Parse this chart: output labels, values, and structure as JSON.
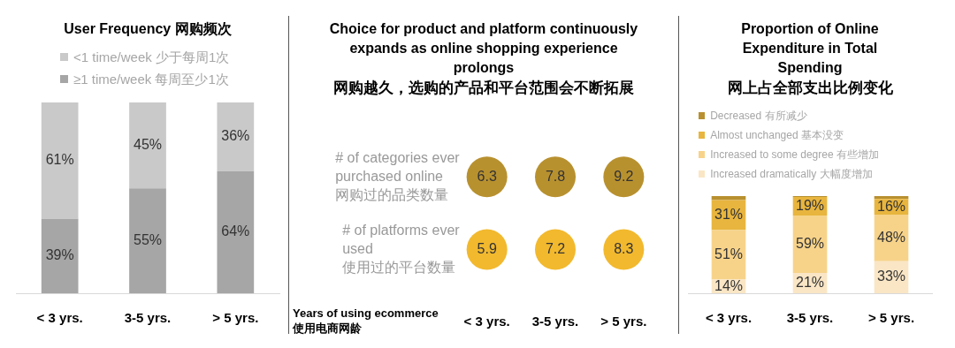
{
  "chart_data": [
    {
      "type": "bar",
      "title": "User Frequency 网购频次",
      "categories": [
        "< 3 yrs.",
        "3-5 yrs.",
        "> 5 yrs."
      ],
      "stacked": true,
      "legend": "top",
      "series": [
        {
          "name": "≥1 time/week 每周至少1次",
          "color": "#a6a6a6",
          "values": [
            39,
            55,
            64
          ],
          "value_labels": [
            "39%",
            "55%",
            "64%"
          ]
        },
        {
          "name": "<1 time/week 少于每周1次",
          "color": "#c9c9c9",
          "values": [
            61,
            45,
            36
          ],
          "value_labels": [
            "61%",
            "45%",
            "36%"
          ]
        }
      ]
    },
    {
      "type": "other",
      "title": "Choice for product and platform continuously expands as online shopping experience prolongs",
      "subtitle": "网购越久，选购的产品和平台范围会不断拓展",
      "xlabel": "Years of using ecommerce 使用电商网龄",
      "categories": [
        "< 3 yrs.",
        "3-5 yrs.",
        "> 5 yrs."
      ],
      "data_labels": true,
      "series": [
        {
          "name": "# of categories ever purchased online 网购过的品类数量",
          "color": "#b8912f",
          "values": [
            6.3,
            7.8,
            9.2
          ]
        },
        {
          "name": "# of platforms ever used 使用过的平台数量",
          "color": "#f2b92e",
          "values": [
            5.9,
            7.2,
            8.3
          ]
        }
      ]
    },
    {
      "type": "bar",
      "title": "Proportion of Online Expenditure in Total Spending",
      "subtitle": "网上占全部支出比例变化",
      "categories": [
        "< 3 yrs.",
        "3-5 yrs.",
        "> 5 yrs."
      ],
      "stacked": true,
      "legend": "top",
      "series": [
        {
          "name": "Increased dramatically 大幅度增加",
          "color": "#fae6c5",
          "values": [
            14,
            21,
            33
          ],
          "value_labels": [
            "14%",
            "21%",
            "33%"
          ]
        },
        {
          "name": "Increased to some degree 有些增加",
          "color": "#f7d38a",
          "values": [
            51,
            59,
            48
          ],
          "value_labels": [
            "51%",
            "59%",
            "48%"
          ]
        },
        {
          "name": "Almost unchanged 基本没变",
          "color": "#e8b53e",
          "values": [
            31,
            19,
            16
          ],
          "value_labels": [
            "31%",
            "19%",
            "16%"
          ]
        },
        {
          "name": "Decreased 有所减少",
          "color": "#b8902f",
          "values": [
            4,
            1,
            3
          ],
          "value_labels": [
            null,
            null,
            null
          ]
        }
      ]
    }
  ]
}
